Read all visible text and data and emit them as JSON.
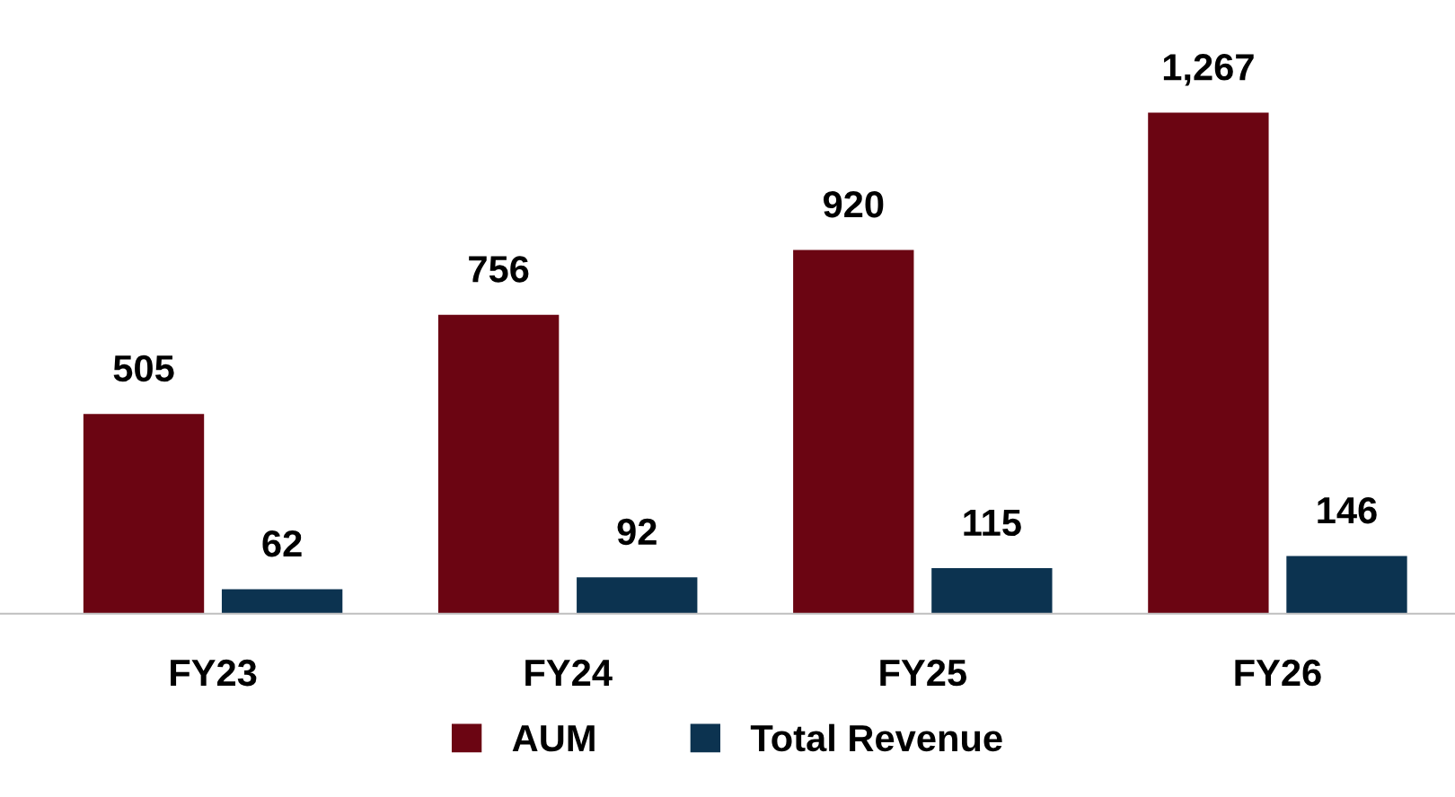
{
  "chart_data": {
    "type": "bar",
    "categories": [
      "FY23",
      "FY24",
      "FY25",
      "FY26"
    ],
    "series": [
      {
        "name": "AUM",
        "color": "#6b0512",
        "values": [
          505,
          756,
          920,
          1267
        ],
        "value_labels": [
          "505",
          "756",
          "920",
          "1,267"
        ]
      },
      {
        "name": "Total Revenue",
        "color": "#0c3350",
        "values": [
          62,
          92,
          115,
          146
        ],
        "value_labels": [
          "62",
          "92",
          "115",
          "146"
        ]
      }
    ],
    "legend": "bottom",
    "grid": false
  }
}
